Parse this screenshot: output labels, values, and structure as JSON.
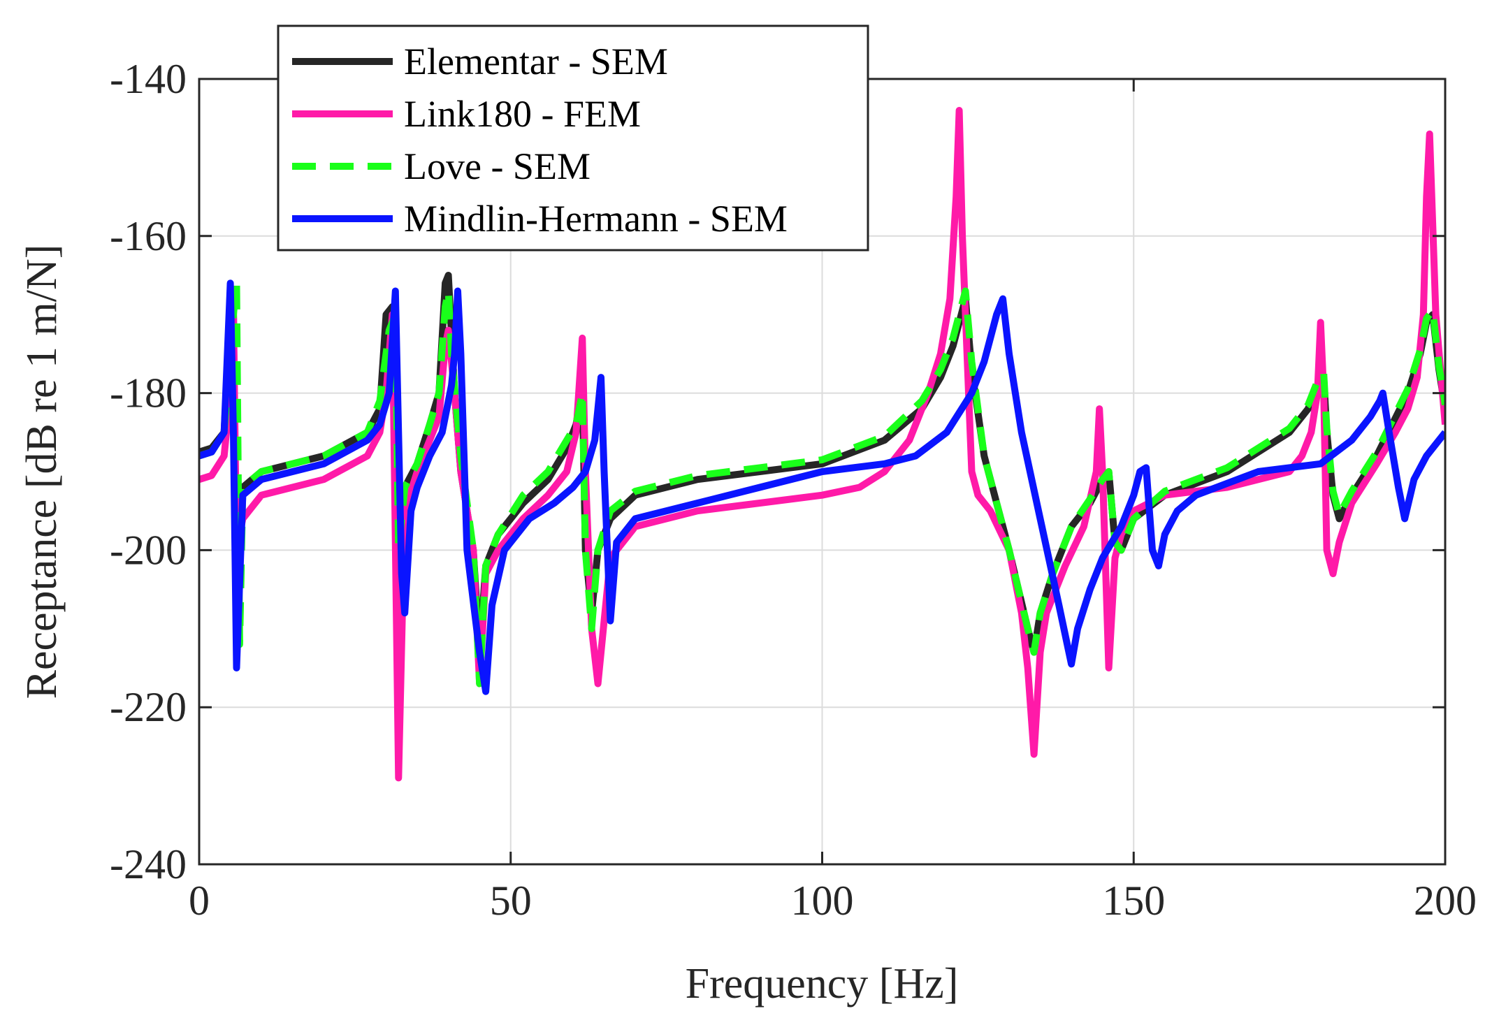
{
  "colors": {
    "elementar": "#262626",
    "link180": "#ff1aa8",
    "love": "#1aff1a",
    "mindlin": "#0a14ff",
    "grid": "#dcdcdc",
    "axis": "#262626"
  },
  "chart_data": {
    "type": "line",
    "title": "",
    "xlabel": "Frequency [Hz]",
    "ylabel": "Receptance [dB re 1 m/N]",
    "xlim": [
      0,
      200
    ],
    "ylim": [
      -240,
      -140
    ],
    "xticks": [
      0,
      50,
      100,
      150,
      200
    ],
    "yticks": [
      -240,
      -220,
      -200,
      -180,
      -160,
      -140
    ],
    "xtick_labels": [
      "0",
      "50",
      "100",
      "150",
      "200"
    ],
    "ytick_labels": [
      "-240",
      "-220",
      "-200",
      "-180",
      "-160",
      "-140"
    ],
    "grid": true,
    "legend_position": "top-left",
    "series": [
      {
        "name": "Elementar - SEM",
        "key": "elementar",
        "style": "solid",
        "x": [
          0,
          2,
          4,
          5,
          5.5,
          6,
          7,
          10,
          20,
          27,
          29,
          30,
          31,
          32,
          33,
          35,
          37,
          38.5,
          39.5,
          40,
          41,
          42,
          44,
          45,
          46,
          48,
          52,
          56,
          59,
          60.5,
          61.5,
          62,
          63,
          64,
          66,
          70,
          80,
          90,
          100,
          110,
          116,
          119,
          121,
          122,
          123,
          124,
          126,
          130,
          133,
          134,
          135,
          137,
          140,
          143,
          145,
          146,
          147,
          148,
          150,
          155,
          165,
          175,
          178,
          179.5,
          180.5,
          181,
          182,
          183,
          185,
          189,
          194,
          196,
          197,
          198,
          199,
          200
        ],
        "y": [
          -187.5,
          -187,
          -185,
          -170,
          -169,
          -212,
          -192,
          -190,
          -188,
          -185,
          -182,
          -170,
          -169,
          -200,
          -192,
          -189,
          -184,
          -180,
          -166,
          -165,
          -180,
          -190,
          -200,
          -213,
          -202,
          -198,
          -194,
          -191,
          -187,
          -184,
          -179,
          -200,
          -208,
          -200,
          -196,
          -193,
          -191,
          -190,
          -189,
          -186,
          -182,
          -178,
          -174,
          -171,
          -168,
          -177,
          -188,
          -200,
          -210,
          -213,
          -208,
          -203,
          -197,
          -194,
          -191,
          -190,
          -199,
          -200,
          -196,
          -193,
          -190,
          -185,
          -182,
          -179,
          -178,
          -185,
          -193,
          -196,
          -193,
          -188,
          -180,
          -175,
          -171,
          -170,
          -177,
          -182
        ]
      },
      {
        "name": "Link180 - FEM",
        "key": "link180",
        "style": "solid",
        "x": [
          0,
          2,
          4,
          5,
          5.5,
          6,
          7,
          10,
          20,
          27,
          29,
          30,
          31,
          32,
          33,
          35,
          37,
          38.5,
          39.5,
          40,
          41,
          42,
          44,
          45,
          46,
          48,
          52,
          56,
          59,
          60.5,
          61.5,
          62,
          63,
          64,
          66,
          70,
          80,
          90,
          100,
          106,
          110,
          114,
          117,
          119,
          120.5,
          121.5,
          122,
          122.5,
          123.5,
          124,
          125,
          127,
          130,
          132,
          133,
          134,
          135,
          136,
          139,
          142,
          144,
          144.5,
          145,
          146,
          147,
          148,
          150,
          155,
          165,
          175,
          177,
          178.5,
          179.5,
          180,
          180.5,
          181,
          182,
          183,
          185,
          189,
          192,
          194,
          195.5,
          196.5,
          197,
          197.5,
          198.5,
          200
        ],
        "y": [
          -191,
          -190.5,
          -188,
          -180,
          -170,
          -200,
          -196,
          -193,
          -191,
          -188,
          -185,
          -180,
          -170,
          -229,
          -195,
          -190,
          -186,
          -183,
          -174,
          -172,
          -180,
          -190,
          -200,
          -217,
          -203,
          -200,
          -196,
          -193,
          -190,
          -185,
          -173,
          -190,
          -210,
          -217,
          -201,
          -197,
          -195,
          -194,
          -193,
          -192,
          -190,
          -186,
          -180,
          -175,
          -168,
          -155,
          -144,
          -160,
          -180,
          -190,
          -193,
          -195,
          -200,
          -208,
          -215,
          -226,
          -213,
          -208,
          -202,
          -197,
          -190,
          -182,
          -190,
          -215,
          -201,
          -198,
          -195,
          -193,
          -192,
          -190,
          -188,
          -185,
          -180,
          -171,
          -180,
          -200,
          -203,
          -199,
          -194,
          -189,
          -185,
          -182,
          -178,
          -170,
          -155,
          -147,
          -170,
          -184
        ]
      },
      {
        "name": "Love - SEM",
        "key": "love",
        "style": "dashed",
        "x": [
          0,
          2,
          4,
          5.5,
          6,
          6.5,
          7,
          10,
          20,
          27,
          29,
          30.5,
          31.5,
          32,
          33,
          35,
          37,
          38.5,
          39.5,
          40,
          40.5,
          42,
          44,
          45,
          46,
          48,
          52,
          56,
          59,
          60.5,
          61.5,
          62,
          63,
          64,
          66,
          70,
          80,
          90,
          100,
          110,
          116,
          119,
          121,
          122,
          123,
          124,
          126,
          130,
          133,
          134,
          135,
          137,
          140,
          143,
          145,
          146,
          147,
          148,
          150,
          155,
          165,
          175,
          178,
          179.5,
          180.5,
          181,
          182,
          183,
          185,
          189,
          194,
          196,
          197,
          198,
          199,
          200
        ],
        "y": [
          -188,
          -187.5,
          -185,
          -170,
          -166,
          -212,
          -192,
          -190,
          -188,
          -185,
          -181,
          -172,
          -170,
          -200,
          -192,
          -189,
          -184,
          -180,
          -169,
          -167,
          -175,
          -188,
          -200,
          -217,
          -202,
          -198,
          -193,
          -190,
          -186,
          -184,
          -180,
          -200,
          -210,
          -200,
          -195,
          -192.5,
          -190.5,
          -189.5,
          -188.5,
          -185.5,
          -181,
          -177,
          -173,
          -170,
          -167,
          -176,
          -188,
          -200,
          -210,
          -213,
          -208,
          -203,
          -197,
          -193.5,
          -191,
          -190,
          -199,
          -200,
          -196,
          -192.5,
          -189.5,
          -184.5,
          -181.5,
          -178.5,
          -177.5,
          -184.5,
          -192.5,
          -195.5,
          -192.5,
          -187.5,
          -179.5,
          -174.5,
          -170.5,
          -169.5,
          -176.5,
          -181.5
        ]
      },
      {
        "name": "Mindlin-Hermann - SEM",
        "key": "mindlin",
        "style": "solid",
        "x": [
          0,
          2,
          4,
          5,
          5.5,
          6,
          7,
          10,
          20,
          27,
          29,
          30.5,
          31.5,
          32.5,
          33,
          34,
          35,
          37,
          39,
          40.5,
          41,
          41.5,
          42,
          43,
          45,
          46,
          47,
          49,
          53,
          57,
          60,
          62,
          63.5,
          64,
          64.5,
          65,
          66,
          67,
          70,
          80,
          90,
          100,
          110,
          115,
          120,
          124,
          126,
          128,
          129,
          130,
          132,
          135,
          138,
          140,
          141,
          143,
          145,
          148,
          150,
          151,
          152,
          153,
          154,
          155,
          157,
          160,
          170,
          180,
          185,
          188,
          189.5,
          190,
          191,
          192.5,
          193.5,
          195,
          197,
          200
        ],
        "y": [
          -188,
          -187.5,
          -185,
          -166,
          -185,
          -215,
          -193,
          -191,
          -189,
          -186,
          -184,
          -180,
          -167,
          -203,
          -208,
          -195,
          -192,
          -188,
          -185,
          -179,
          -175,
          -167,
          -175,
          -200,
          -213,
          -218,
          -207,
          -200,
          -196,
          -194,
          -192,
          -190,
          -186,
          -182,
          -178,
          -190,
          -209,
          -199,
          -196,
          -194,
          -192,
          -190,
          -189,
          -188,
          -185,
          -180,
          -176,
          -170,
          -168,
          -175,
          -185,
          -196,
          -207,
          -214.5,
          -210,
          -205,
          -201,
          -197,
          -193,
          -190,
          -189.5,
          -200,
          -202,
          -198,
          -195,
          -193,
          -190,
          -189,
          -186,
          -183,
          -181,
          -180,
          -185,
          -192,
          -196,
          -191,
          -188,
          -185
        ]
      }
    ]
  }
}
